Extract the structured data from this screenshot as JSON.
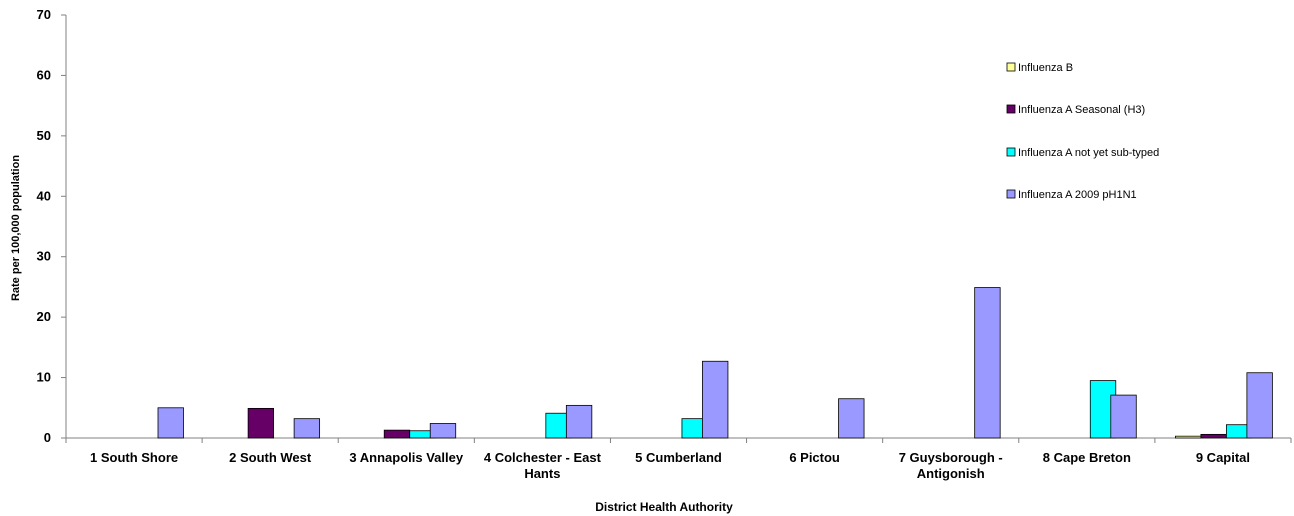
{
  "chart_data": {
    "type": "bar",
    "title": "",
    "xlabel": "District Health Authority",
    "ylabel": "Rate per 100,000 population",
    "ylim": [
      0,
      70
    ],
    "yticks": [
      0,
      10,
      20,
      30,
      40,
      50,
      60,
      70
    ],
    "grid": false,
    "legend_position": "right",
    "categories": [
      [
        "1 South Shore"
      ],
      [
        "2 South West"
      ],
      [
        "3 Annapolis Valley"
      ],
      [
        "4 Colchester - East",
        "Hants"
      ],
      [
        "5 Cumberland"
      ],
      [
        "6 Pictou"
      ],
      [
        "7 Guysborough -",
        "Antigonish"
      ],
      [
        "8 Cape Breton"
      ],
      [
        "9 Capital"
      ]
    ],
    "series": [
      {
        "name": "Influenza B",
        "color": "#FFFF99",
        "values": [
          0,
          0,
          0,
          0,
          0,
          0,
          0,
          0,
          0.3
        ]
      },
      {
        "name": "Influenza A Seasonal (H3)",
        "color": "#660066",
        "values": [
          0,
          4.9,
          1.3,
          0,
          0,
          0,
          0,
          0,
          0.6
        ]
      },
      {
        "name": "Influenza A not yet sub-typed",
        "color": "#00FFFF",
        "values": [
          0,
          0,
          1.2,
          4.1,
          3.2,
          0,
          0,
          9.5,
          2.2
        ]
      },
      {
        "name": "Influenza A 2009 pH1N1",
        "color": "#9999FF",
        "values": [
          5.0,
          3.2,
          2.4,
          5.4,
          12.7,
          6.5,
          24.9,
          7.1,
          10.8
        ]
      }
    ]
  }
}
